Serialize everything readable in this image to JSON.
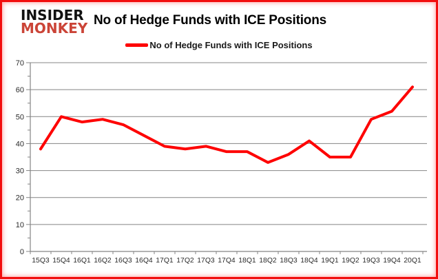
{
  "logo": {
    "line1": "INSIDER",
    "line2": "MONKEY"
  },
  "header": {
    "title": "No of Hedge Funds with ICE Positions"
  },
  "legend": {
    "label": "No of Hedge Funds with ICE Positions"
  },
  "chart_data": {
    "type": "line",
    "title": "No of Hedge Funds with ICE Positions",
    "categories": [
      "15Q3",
      "15Q4",
      "16Q1",
      "16Q2",
      "16Q3",
      "16Q4",
      "17Q1",
      "17Q2",
      "17Q3",
      "17Q4",
      "18Q1",
      "18Q2",
      "18Q3",
      "18Q4",
      "19Q1",
      "19Q2",
      "19Q3",
      "19Q4",
      "20Q1"
    ],
    "series": [
      {
        "name": "No of Hedge Funds with ICE Positions",
        "color": "#FE0000",
        "values": [
          38,
          50,
          48,
          49,
          47,
          43,
          39,
          38,
          39,
          37,
          37,
          33,
          36,
          41,
          35,
          35,
          49,
          52,
          61
        ]
      }
    ],
    "xlabel": "",
    "ylabel": "",
    "ylim": [
      0,
      70
    ],
    "y_ticks": [
      0,
      10,
      20,
      30,
      40,
      50,
      60,
      70
    ],
    "y_minor_tick_step": 5,
    "grid": true,
    "legend_position": "top",
    "colors": {
      "gridline": "#848484",
      "axis": "#848484",
      "tick_label": "#2b2b2b"
    }
  }
}
